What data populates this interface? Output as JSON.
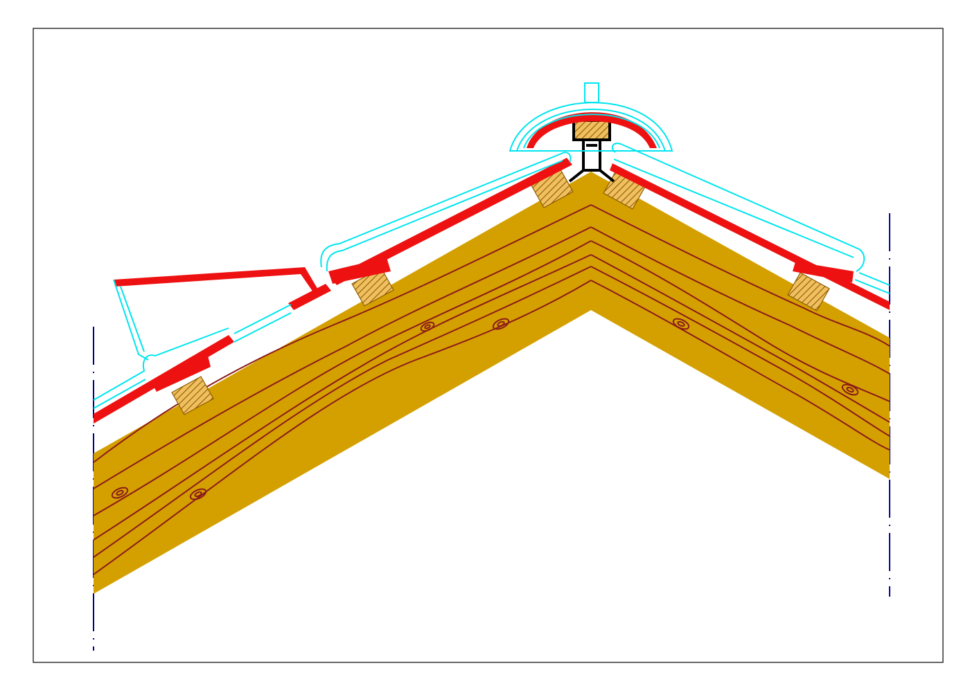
{
  "colors": {
    "background": "#ffffff",
    "frame": "#000000",
    "rafter_fill": "#d4a000",
    "grain": "#8b1a1a",
    "tile_red": "#ee1111",
    "tile_outline": "#00e5ee",
    "batten_fill": "#f0c060",
    "batten_hatch": "#8b5a00",
    "ridge_bracket": "#000000",
    "centerline": "#00008b"
  },
  "diagram": {
    "subject": "roof-ridge-cross-section"
  }
}
